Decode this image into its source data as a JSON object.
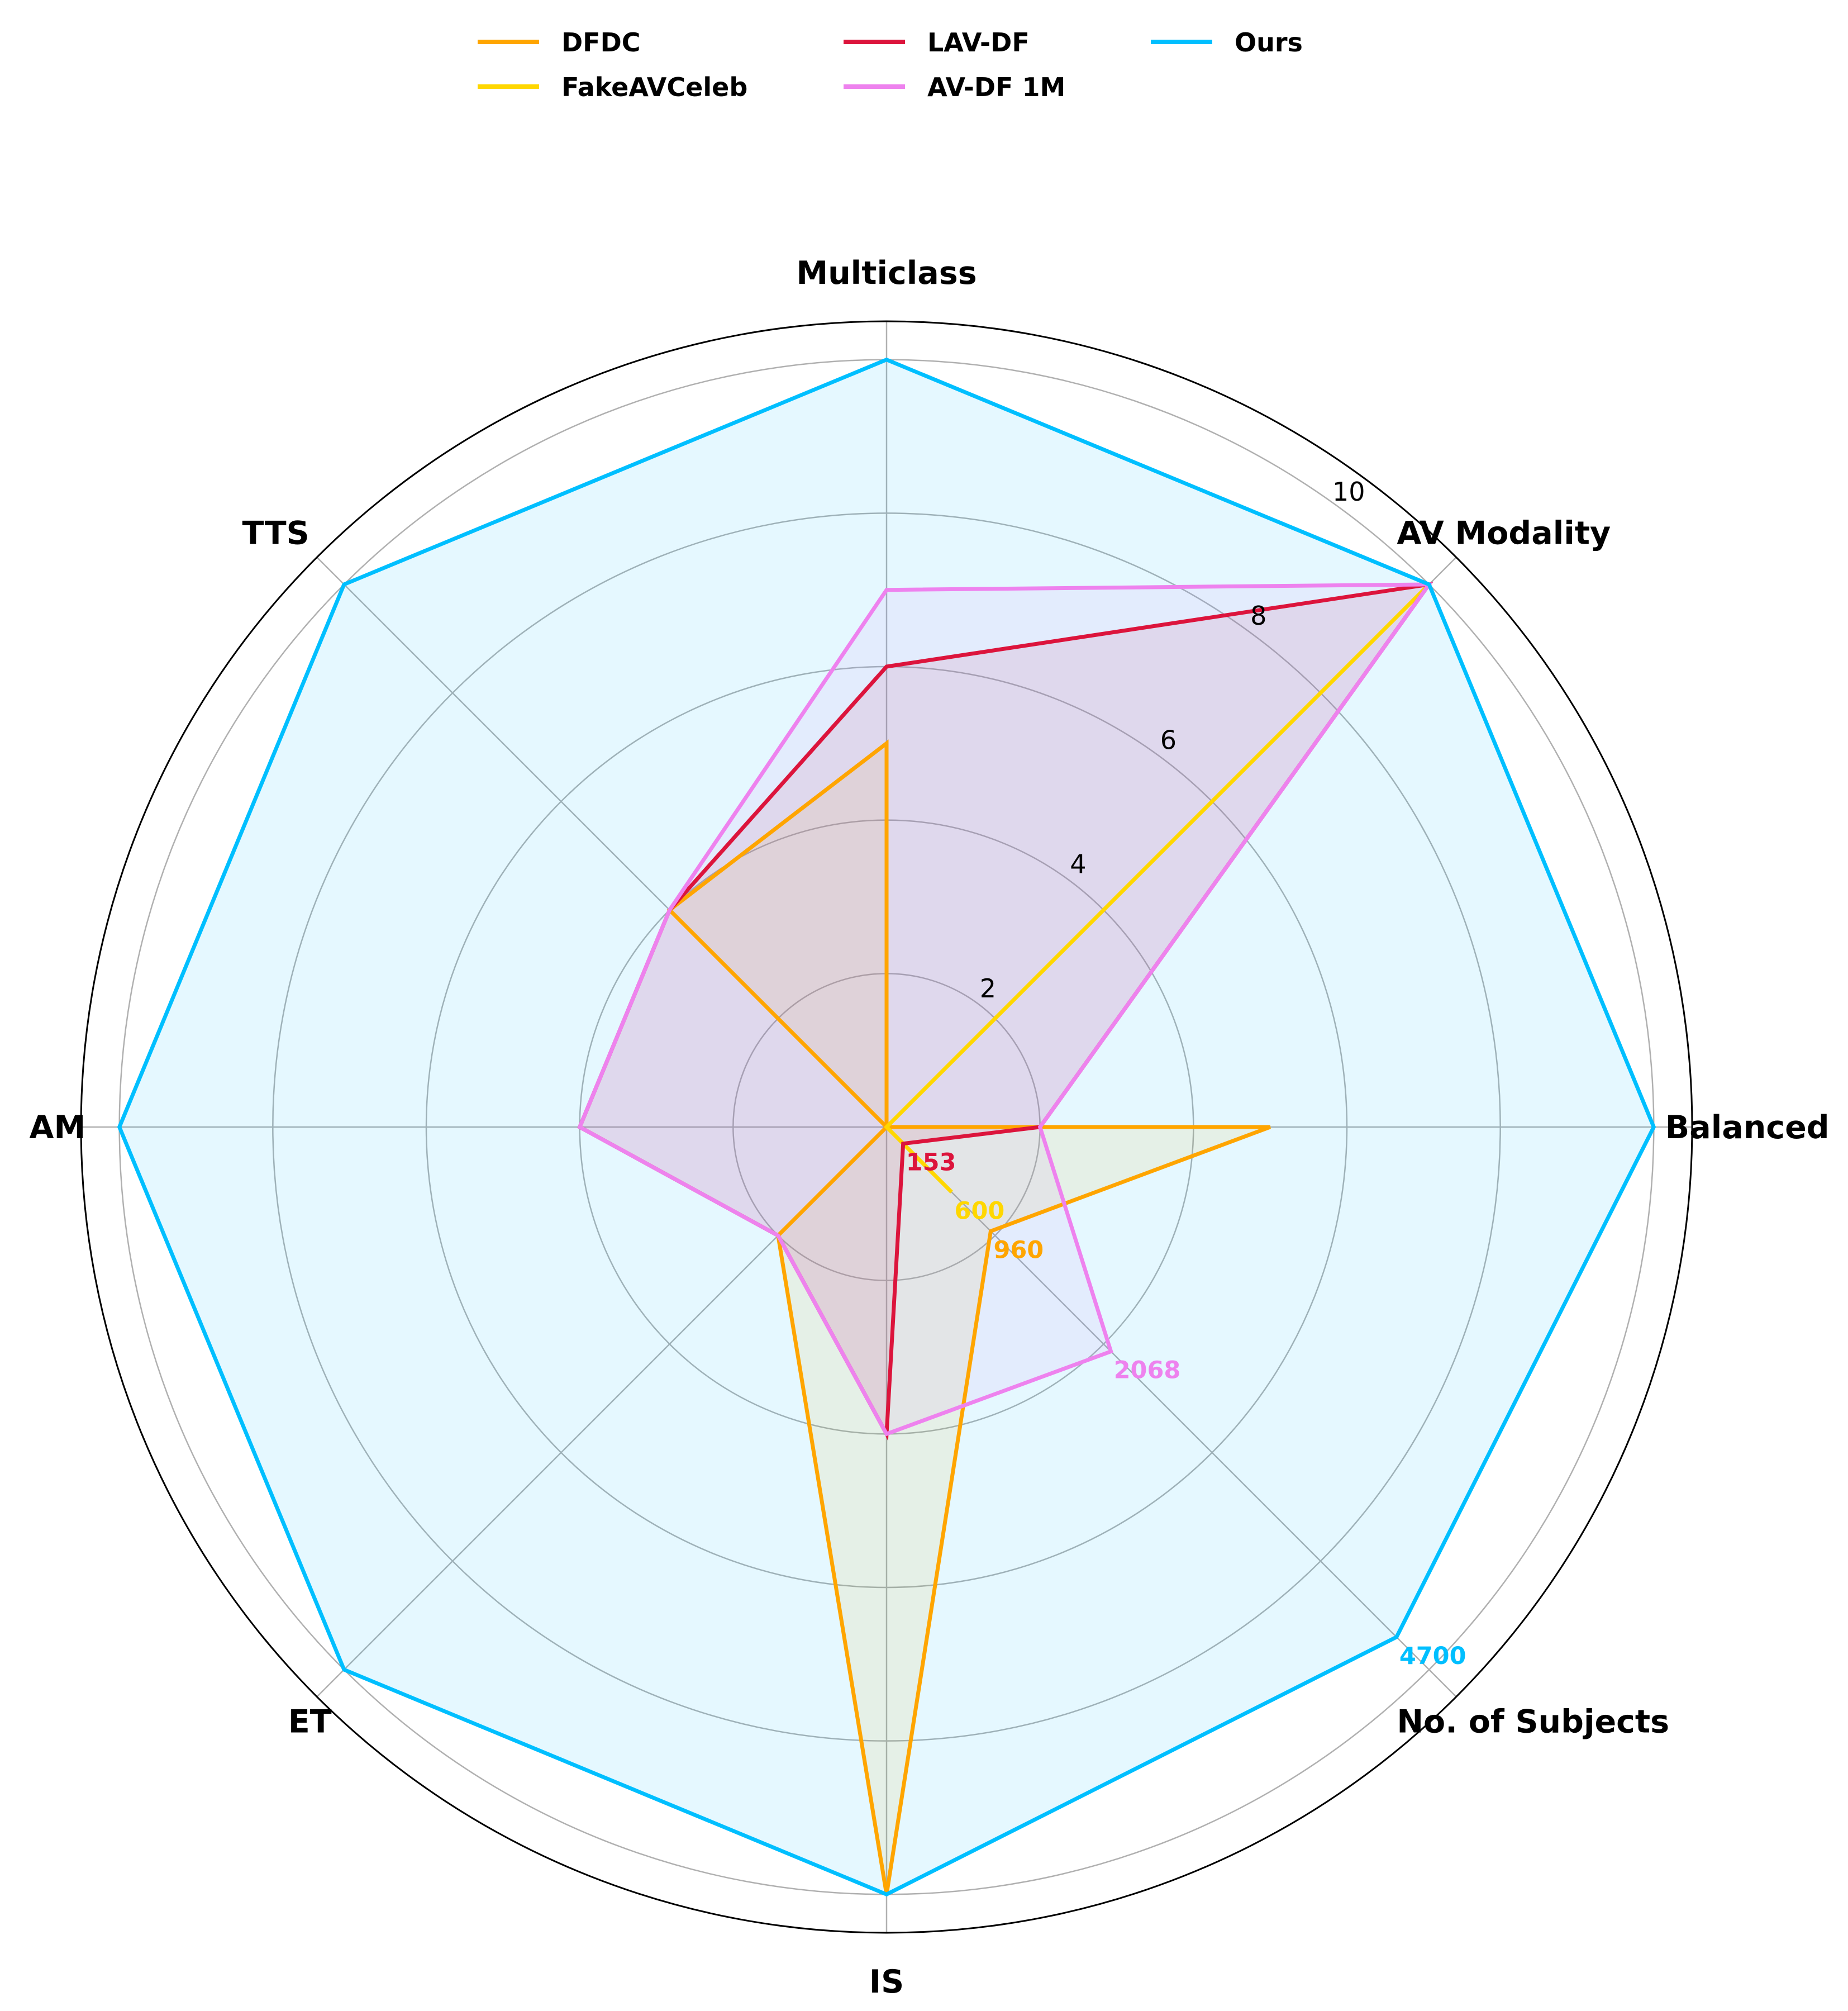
{
  "chart_data": {
    "type": "radar",
    "axes": [
      "Multiclass",
      "AV Modality",
      "Balanced",
      "No. of Subjects",
      "IS",
      "ET",
      "AM",
      "TTS"
    ],
    "rlim": [
      0,
      10.5
    ],
    "rticks": [
      2,
      4,
      6,
      8,
      10
    ],
    "rtick_labels": [
      "2",
      "4",
      "6",
      "8",
      "10"
    ],
    "grid": true,
    "legend_position": "top-center",
    "series": [
      {
        "name": "DFDC",
        "color": "#FFA500",
        "fill": "#FFA500",
        "fill_opacity": 0.1,
        "values": [
          5,
          0,
          5,
          1.92,
          10,
          2,
          0,
          4
        ],
        "subjects_label": "960"
      },
      {
        "name": "FakeAVCeleb",
        "color": "#FFD700",
        "fill": "#FFD700",
        "fill_opacity": 0.1,
        "values": [
          0,
          10,
          0,
          1.2,
          0,
          0,
          0,
          0
        ],
        "subjects_label": "600"
      },
      {
        "name": "LAV-DF",
        "color": "#DC143C",
        "fill": "#DC143C",
        "fill_opacity": 0.1,
        "values": [
          6,
          10,
          2,
          0.306,
          4,
          2,
          4,
          4
        ],
        "subjects_label": "153"
      },
      {
        "name": "AV-DF 1M",
        "color": "#EE82EE",
        "fill": "#EE82EE",
        "fill_opacity": 0.1,
        "values": [
          7,
          10,
          2,
          4.136,
          4,
          2,
          4,
          4
        ],
        "subjects_label": "2068"
      },
      {
        "name": "Ours",
        "color": "#00BFFF",
        "fill": "#00BFFF",
        "fill_opacity": 0.1,
        "values": [
          10,
          10,
          10,
          9.4,
          10,
          10,
          10,
          10
        ],
        "subjects_label": "4700"
      }
    ]
  }
}
